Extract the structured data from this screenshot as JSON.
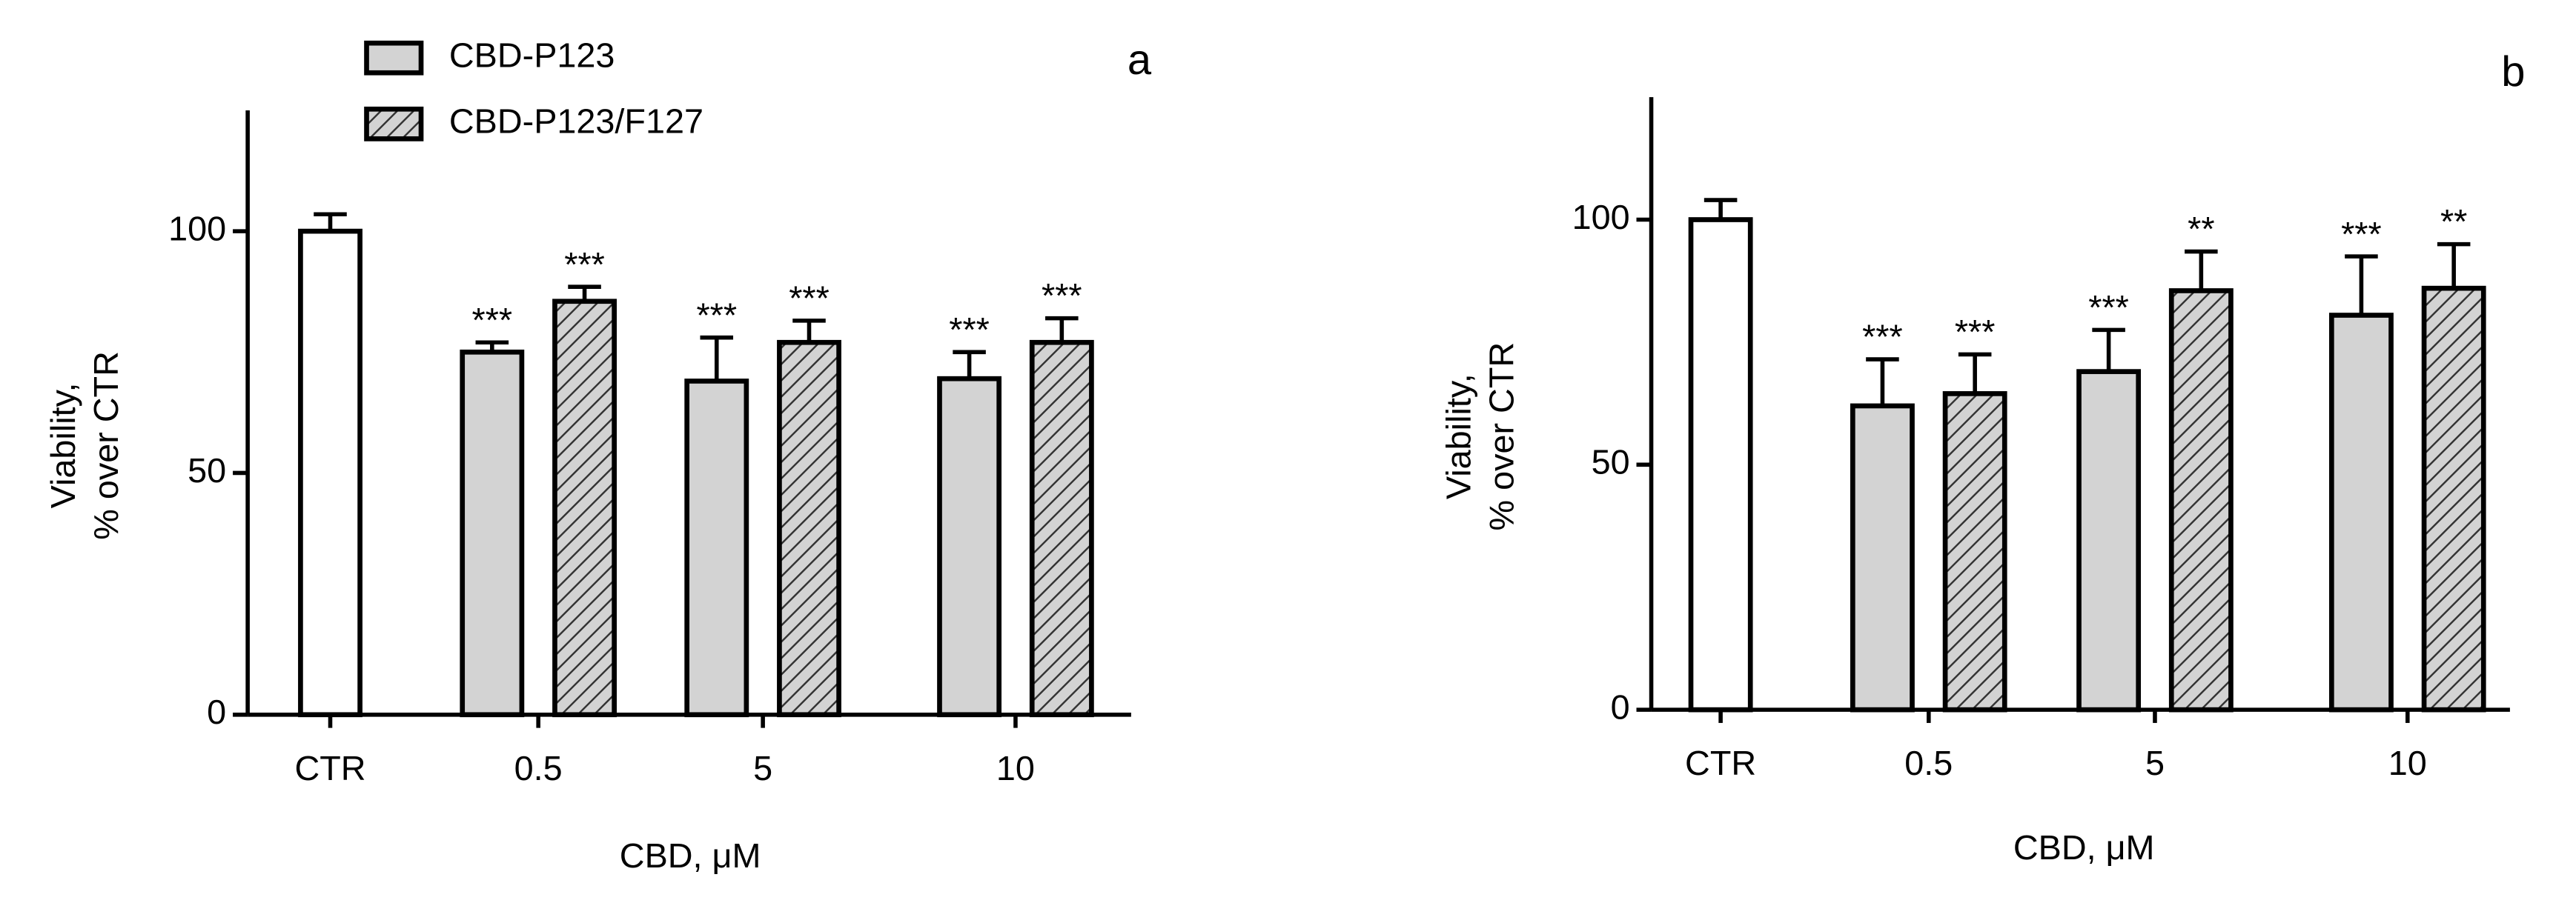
{
  "chart_data": [
    {
      "type": "bar",
      "panel": "a",
      "y_label": [
        "Viability,",
        "% over CTR"
      ],
      "x_label": "CBD, μM",
      "categories": [
        "CTR",
        "0.5",
        "5",
        "10"
      ],
      "ylim": [
        0,
        125
      ],
      "yticks": [
        0,
        50,
        100
      ],
      "legend": "top",
      "control": {
        "color": "#ffffff",
        "values": [
          100,
          null,
          null,
          null
        ],
        "errors": [
          3.5,
          null,
          null,
          null
        ]
      },
      "series": [
        {
          "name": "CBD-P123",
          "color": "#d3d3d3",
          "values": [
            null,
            75,
            69,
            69.5
          ],
          "errors": [
            null,
            2,
            9,
            5.5
          ],
          "annotations": [
            null,
            "***",
            "***",
            "***"
          ]
        },
        {
          "name": "CBD-P123/F127",
          "color": "#d3d3d3",
          "pattern": "hatch",
          "values": [
            null,
            85.5,
            77,
            77
          ],
          "errors": [
            null,
            3,
            4.5,
            5
          ],
          "annotations": [
            null,
            "***",
            "***",
            "***"
          ]
        }
      ]
    },
    {
      "type": "bar",
      "panel": "b",
      "y_label": [
        "Viability,",
        "% over CTR"
      ],
      "x_label": "CBD, μM",
      "categories": [
        "CTR",
        "0.5",
        "5",
        "10"
      ],
      "ylim": [
        0,
        125
      ],
      "yticks": [
        0,
        50,
        100
      ],
      "control": {
        "color": "#ffffff",
        "values": [
          100,
          null,
          null,
          null
        ],
        "errors": [
          4,
          null,
          null,
          null
        ]
      },
      "series": [
        {
          "name": "CBD-P123",
          "color": "#d3d3d3",
          "values": [
            null,
            62,
            69,
            80.5
          ],
          "errors": [
            null,
            9.5,
            8.5,
            12
          ],
          "annotations": [
            null,
            "***",
            "***",
            "***"
          ]
        },
        {
          "name": "CBD-P123/F127",
          "color": "#d3d3d3",
          "pattern": "hatch",
          "values": [
            null,
            64.5,
            85.5,
            86
          ],
          "errors": [
            null,
            8,
            8,
            9
          ],
          "annotations": [
            null,
            "***",
            "**",
            "**"
          ]
        }
      ]
    }
  ]
}
